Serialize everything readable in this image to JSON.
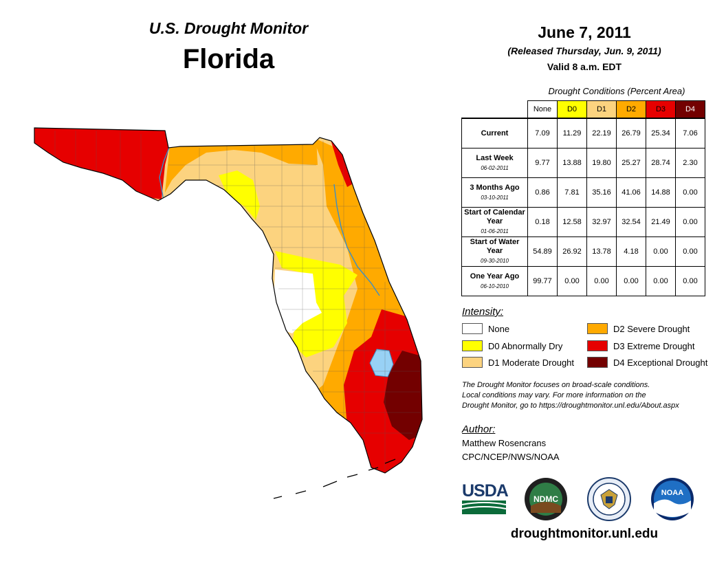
{
  "header": {
    "monitor_title": "U.S. Drought Monitor",
    "state": "Florida",
    "date": "June 7, 2011",
    "released": "(Released Thursday, Jun. 9, 2011)",
    "valid": "Valid 8 a.m. EDT"
  },
  "table": {
    "caption": "Drought Conditions (Percent Area)",
    "columns": [
      "None",
      "D0",
      "D1",
      "D2",
      "D3",
      "D4"
    ],
    "column_colors": [
      "#ffffff",
      "#ffff00",
      "#fcd37f",
      "#ffaa00",
      "#e60000",
      "#730000"
    ],
    "rows": [
      {
        "label": "Current",
        "date": "",
        "values": [
          "7.09",
          "11.29",
          "22.19",
          "26.79",
          "25.34",
          "7.06"
        ]
      },
      {
        "label": "Last Week",
        "date": "06-02-2011",
        "values": [
          "9.77",
          "13.88",
          "19.80",
          "25.27",
          "28.74",
          "2.30"
        ]
      },
      {
        "label": "3 Months Ago",
        "date": "03-10-2011",
        "values": [
          "0.86",
          "7.81",
          "35.16",
          "41.06",
          "14.88",
          "0.00"
        ]
      },
      {
        "label": "Start of Calendar Year",
        "date": "01-06-2011",
        "values": [
          "0.18",
          "12.58",
          "32.97",
          "32.54",
          "21.49",
          "0.00"
        ]
      },
      {
        "label": "Start of Water Year",
        "date": "09-30-2010",
        "values": [
          "54.89",
          "26.92",
          "13.78",
          "4.18",
          "0.00",
          "0.00"
        ]
      },
      {
        "label": "One Year Ago",
        "date": "06-10-2010",
        "values": [
          "99.77",
          "0.00",
          "0.00",
          "0.00",
          "0.00",
          "0.00"
        ]
      }
    ]
  },
  "legend": {
    "title": "Intensity:",
    "items": [
      {
        "label": "None",
        "color": "#ffffff"
      },
      {
        "label": "D0 Abnormally Dry",
        "color": "#ffff00"
      },
      {
        "label": "D1 Moderate Drought",
        "color": "#fcd37f"
      },
      {
        "label": "D2 Severe Drought",
        "color": "#ffaa00"
      },
      {
        "label": "D3 Extreme Drought",
        "color": "#e60000"
      },
      {
        "label": "D4 Exceptional Drought",
        "color": "#730000"
      }
    ]
  },
  "note": {
    "line1": "The Drought Monitor focuses on broad-scale conditions.",
    "line2": "Local conditions may vary. For more information on the",
    "line3": "Drought Monitor, go to https://droughtmonitor.unl.edu/About.aspx"
  },
  "author": {
    "title": "Author:",
    "name": "Matthew Rosencrans",
    "org": "CPC/NCEP/NWS/NOAA"
  },
  "logos": {
    "usda": "USDA",
    "ndmc": "NDMC",
    "noaa": "NOAA"
  },
  "website": "droughtmonitor.unl.edu"
}
